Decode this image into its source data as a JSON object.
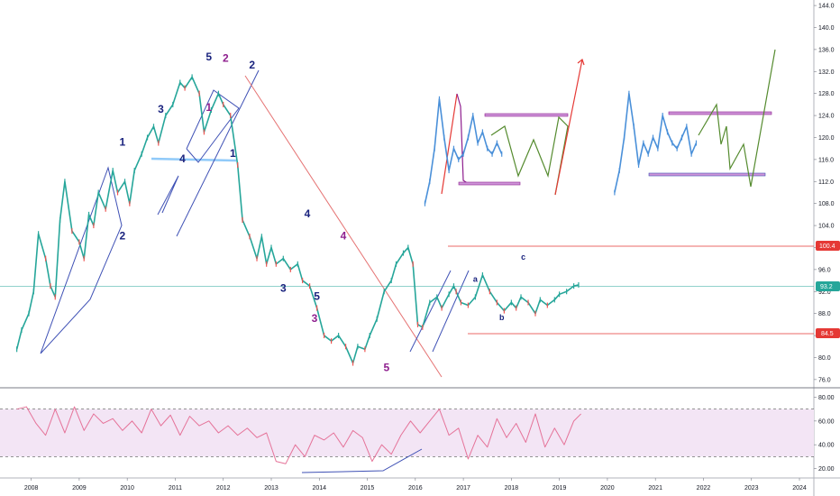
{
  "chart_data": [
    {
      "type": "line",
      "subtype": "candlestick-approx",
      "title": "",
      "xlabel": "",
      "ylabel": "",
      "x_ticks": [
        "2008",
        "2009",
        "2010",
        "2011",
        "2012",
        "2013",
        "2014",
        "2015",
        "2016",
        "2017",
        "2018",
        "2019",
        "2020",
        "2021",
        "2022",
        "2023",
        "2024"
      ],
      "xlim": [
        2007.35,
        2024.3
      ],
      "y_ticks": [
        76.0,
        80.0,
        84.0,
        88.0,
        92.0,
        96.0,
        100.0,
        104.0,
        108.0,
        112.0,
        116.0,
        120.0,
        124.0,
        128.0,
        132.0,
        136.0,
        140.0,
        144.0
      ],
      "ylim": [
        74.5,
        145
      ],
      "series": [
        {
          "name": "",
          "x": [
            2007.7,
            2007.8,
            2007.95,
            2008.05,
            2008.15,
            2008.3,
            2008.4,
            2008.5,
            2008.6,
            2008.7,
            2008.85,
            2009.0,
            2009.1,
            2009.2,
            2009.3,
            2009.4,
            2009.55,
            2009.7,
            2009.8,
            2009.95,
            2010.05,
            2010.15,
            2010.3,
            2010.42,
            2010.55,
            2010.65,
            2010.8,
            2010.95,
            2011.1,
            2011.2,
            2011.35,
            2011.5,
            2011.6,
            2011.75,
            2011.9,
            2012.0,
            2012.15,
            2012.3,
            2012.4,
            2012.55,
            2012.7,
            2012.8,
            2012.9,
            2013.0,
            2013.1,
            2013.25,
            2013.4,
            2013.55,
            2013.65,
            2013.8,
            2013.95,
            2014.1,
            2014.25,
            2014.4,
            2014.55,
            2014.7,
            2014.8,
            2014.95,
            2015.05,
            2015.2,
            2015.35,
            2015.5,
            2015.6,
            2015.75,
            2015.85,
            2015.95,
            2016.05,
            2016.15,
            2016.3,
            2016.45,
            2016.55,
            2016.7,
            2016.8,
            2016.85,
            2016.95,
            2017.1,
            2017.25,
            2017.4,
            2017.55,
            2017.7,
            2017.85,
            2018.0,
            2018.1,
            2018.2,
            2018.35,
            2018.5,
            2018.6,
            2018.75,
            2018.9,
            2019.0,
            2019.15,
            2019.3,
            2019.4
          ],
          "y": [
            81.5,
            85.0,
            88.0,
            92.0,
            102.5,
            98.0,
            93.0,
            91.0,
            105.0,
            112.0,
            103.0,
            101.0,
            98.0,
            106.0,
            104.0,
            110.0,
            107.0,
            114.0,
            110.0,
            112.0,
            108.0,
            114.0,
            117.0,
            120.0,
            122.0,
            119.0,
            124.0,
            126.0,
            130.0,
            129.0,
            131.0,
            128.0,
            121.0,
            125.0,
            128.0,
            126.0,
            124.0,
            115.0,
            105.0,
            102.0,
            98.0,
            102.0,
            97.0,
            100.0,
            97.0,
            98.0,
            96.0,
            97.0,
            94.0,
            93.0,
            89.0,
            84.0,
            83.0,
            84.0,
            82.0,
            79.0,
            82.0,
            81.5,
            84.0,
            87.0,
            92.0,
            94.0,
            97.0,
            99.0,
            100.0,
            97.0,
            86.0,
            85.5,
            90.0,
            91.0,
            89.0,
            91.5,
            93.0,
            92.0,
            90.0,
            89.5,
            91.0,
            95.0,
            92.0,
            90.0,
            88.5,
            90.0,
            89.0,
            91.0,
            90.0,
            88.0,
            90.5,
            89.5,
            90.5,
            91.5,
            92.0,
            93.0,
            93.2
          ]
        },
        {
          "name": "",
          "x": [
            2016.2,
            2016.3,
            2016.4,
            2016.5,
            2016.6,
            2016.7,
            2016.8,
            2016.9,
            2017.0,
            2017.1,
            2017.2,
            2017.3,
            2017.4,
            2017.5,
            2017.6,
            2017.7,
            2017.8
          ],
          "y": [
            108.0,
            112.0,
            118.0,
            127.0,
            120.0,
            114.0,
            118.0,
            116.0,
            117.0,
            120.0,
            124.0,
            119.0,
            121.0,
            118.0,
            117.0,
            119.0,
            117.0
          ]
        },
        {
          "name": "",
          "x": [
            2020.15,
            2020.25,
            2020.35,
            2020.45,
            2020.55,
            2020.65,
            2020.75,
            2020.85,
            2020.95,
            2021.05,
            2021.15,
            2021.25,
            2021.35,
            2021.45,
            2021.55,
            2021.65,
            2021.75,
            2021.85
          ],
          "y": [
            110.0,
            114.0,
            120.0,
            128.0,
            122.0,
            115.0,
            119.0,
            117.0,
            120.0,
            118.0,
            124.0,
            121.0,
            119.0,
            118.0,
            120.0,
            122.0,
            117.0,
            119.0
          ]
        }
      ],
      "annotations": [
        {
          "label": "1",
          "x": 2009.9,
          "y": 118.5,
          "color": "#1a237e"
        },
        {
          "label": "2",
          "x": 2009.9,
          "y": 101.5,
          "color": "#1a237e"
        },
        {
          "label": "3",
          "x": 2010.7,
          "y": 124.5,
          "color": "#1a237e"
        },
        {
          "label": "4",
          "x": 2011.15,
          "y": 115.5,
          "color": "#1a237e"
        },
        {
          "label": "5",
          "x": 2011.7,
          "y": 134.0,
          "color": "#1a237e"
        },
        {
          "label": "1",
          "x": 2012.2,
          "y": 116.5,
          "color": "#1a237e"
        },
        {
          "label": "2",
          "x": 2012.6,
          "y": 132.5,
          "color": "#1a237e"
        },
        {
          "label": "3",
          "x": 2013.25,
          "y": 92.0,
          "color": "#1a237e"
        },
        {
          "label": "4",
          "x": 2013.75,
          "y": 105.5,
          "color": "#1a237e"
        },
        {
          "label": "5",
          "x": 2013.95,
          "y": 90.5,
          "color": "#1a237e"
        },
        {
          "label": "2",
          "x": 2012.05,
          "y": 133.8,
          "color": "#8e1e8e"
        },
        {
          "label": "1",
          "x": 2011.7,
          "y": 124.8,
          "color": "#8e1e8e"
        },
        {
          "label": "4",
          "x": 2014.5,
          "y": 101.5,
          "color": "#8e1e8e"
        },
        {
          "label": "3",
          "x": 2013.9,
          "y": 86.5,
          "color": "#8e1e8e"
        },
        {
          "label": "5",
          "x": 2015.4,
          "y": 77.5,
          "color": "#8e1e8e"
        },
        {
          "label": "a",
          "x": 2017.25,
          "y": 93.8,
          "color": "#1a237e"
        },
        {
          "label": "b",
          "x": 2017.8,
          "y": 86.8,
          "color": "#1a237e"
        },
        {
          "label": "c",
          "x": 2018.25,
          "y": 97.8,
          "color": "#1a237e"
        }
      ],
      "levels": [
        {
          "label": "100.4",
          "y": 100.4,
          "color": "#e53935"
        },
        {
          "label": "84.5",
          "y": 84.5,
          "color": "#e53935"
        },
        {
          "label": "93.2",
          "y": 93.2,
          "color": "#26a69a"
        }
      ],
      "grid": false,
      "legend": "none"
    },
    {
      "type": "line",
      "title": "",
      "xlabel": "",
      "ylabel": "",
      "y_ticks": [
        20.0,
        40.0,
        60.0,
        80.0
      ],
      "ylim": [
        12,
        88
      ],
      "band": [
        30,
        70
      ],
      "series": [
        {
          "name": "",
          "x": [
            2007.7,
            2007.9,
            2008.1,
            2008.3,
            2008.5,
            2008.7,
            2008.9,
            2009.1,
            2009.3,
            2009.5,
            2009.7,
            2009.9,
            2010.1,
            2010.3,
            2010.5,
            2010.7,
            2010.9,
            2011.1,
            2011.3,
            2011.5,
            2011.7,
            2011.9,
            2012.1,
            2012.3,
            2012.5,
            2012.7,
            2012.9,
            2013.1,
            2013.3,
            2013.5,
            2013.7,
            2013.9,
            2014.1,
            2014.3,
            2014.5,
            2014.7,
            2014.9,
            2015.1,
            2015.3,
            2015.5,
            2015.7,
            2015.9,
            2016.1,
            2016.3,
            2016.5,
            2016.7,
            2016.9,
            2017.1,
            2017.3,
            2017.5,
            2017.7,
            2017.9,
            2018.1,
            2018.3,
            2018.5,
            2018.7,
            2018.9,
            2019.1,
            2019.3,
            2019.45
          ],
          "y": [
            70,
            72,
            58,
            48,
            70,
            50,
            72,
            52,
            66,
            58,
            62,
            52,
            60,
            50,
            70,
            56,
            65,
            48,
            64,
            56,
            60,
            50,
            56,
            48,
            54,
            46,
            50,
            26,
            24,
            40,
            30,
            48,
            44,
            50,
            38,
            52,
            46,
            26,
            40,
            32,
            48,
            60,
            50,
            60,
            70,
            48,
            54,
            28,
            48,
            38,
            62,
            46,
            58,
            42,
            66,
            38,
            54,
            40,
            60,
            66
          ]
        }
      ],
      "annotations": [],
      "grid": false,
      "legend": "none"
    }
  ],
  "price_tags": {
    "top": "100.4",
    "current": "93.2",
    "bottom": "84.5"
  }
}
